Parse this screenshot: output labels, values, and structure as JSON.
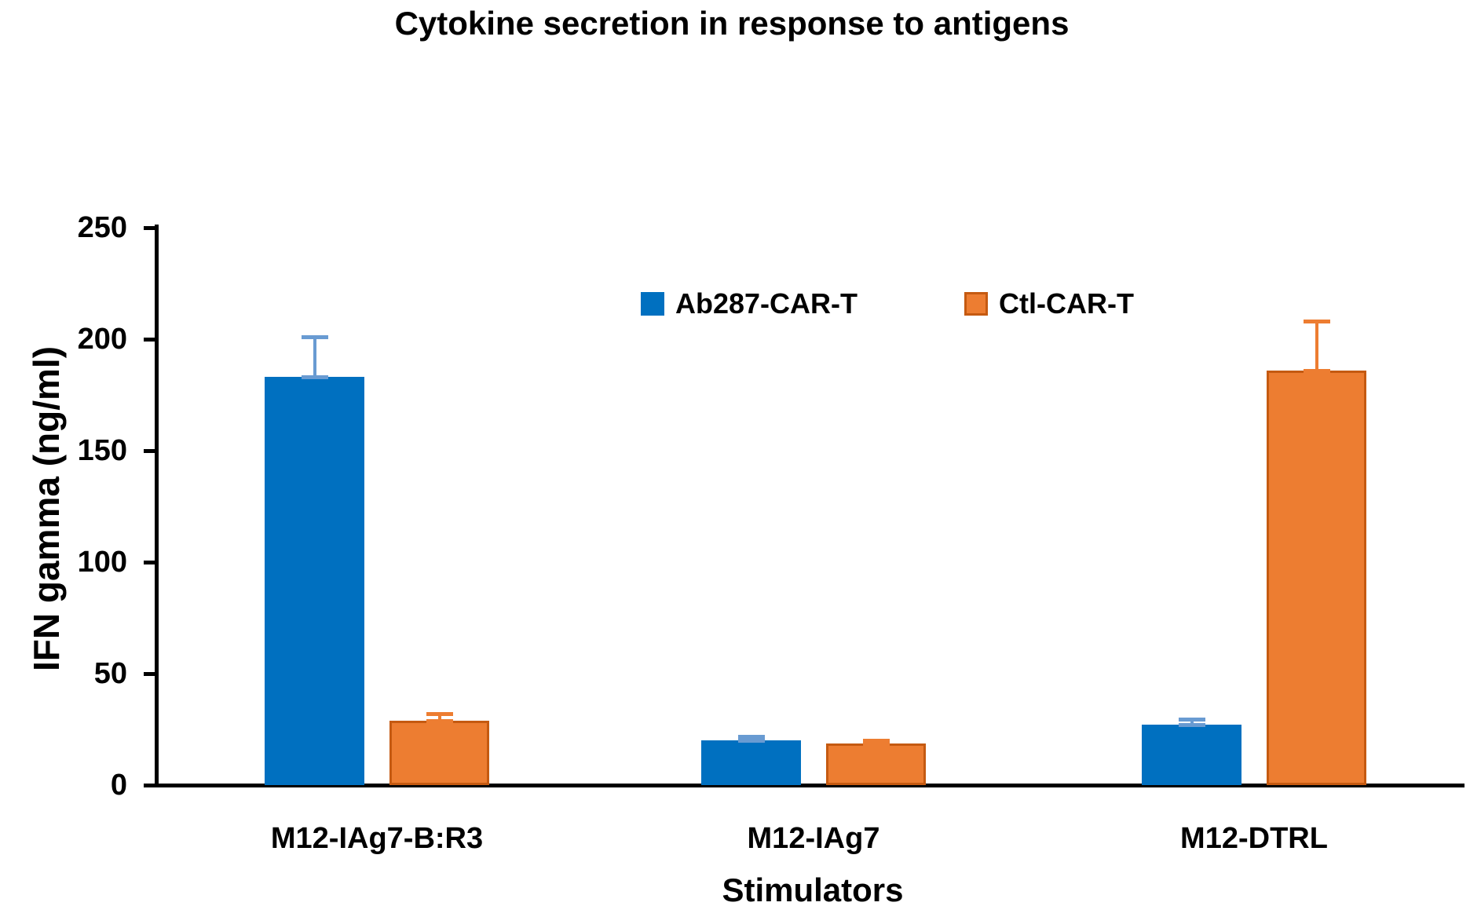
{
  "title": "Cytokine secretion in response to antigens",
  "legend": {
    "items": [
      {
        "label": "Ab287-CAR-T",
        "color": "#0070C0"
      },
      {
        "label": "Ctl-CAR-T",
        "color": "#ED7D31",
        "border": "#C55A11"
      }
    ]
  },
  "chart_data": {
    "type": "bar",
    "title": "Cytokine secretion in response to antigens",
    "xlabel": "Stimulators",
    "ylabel": "IFN gamma (ng/ml)",
    "categories": [
      "M12-IAg7-B:R3",
      "M12-IAg7",
      "M12-DTRL"
    ],
    "series": [
      {
        "name": "Ab287-CAR-T",
        "color": "#0070C0",
        "border_color": null,
        "error_color": "#699BD2",
        "values": [
          183,
          20,
          27
        ],
        "errors_plus": [
          18,
          2,
          2.5
        ]
      },
      {
        "name": "Ctl-CAR-T",
        "color": "#ED7D31",
        "border_color": "#C55A11",
        "error_color": "#ED7D31",
        "values": [
          29,
          18.5,
          186
        ],
        "errors_plus": [
          3,
          1.5,
          22
        ]
      }
    ],
    "ylim": [
      0,
      250
    ],
    "yticks": [
      0,
      50,
      100,
      150,
      200,
      250
    ],
    "grid": false,
    "legend_position": "top-center-inside",
    "error_bars": "upper-only-with-caps"
  }
}
